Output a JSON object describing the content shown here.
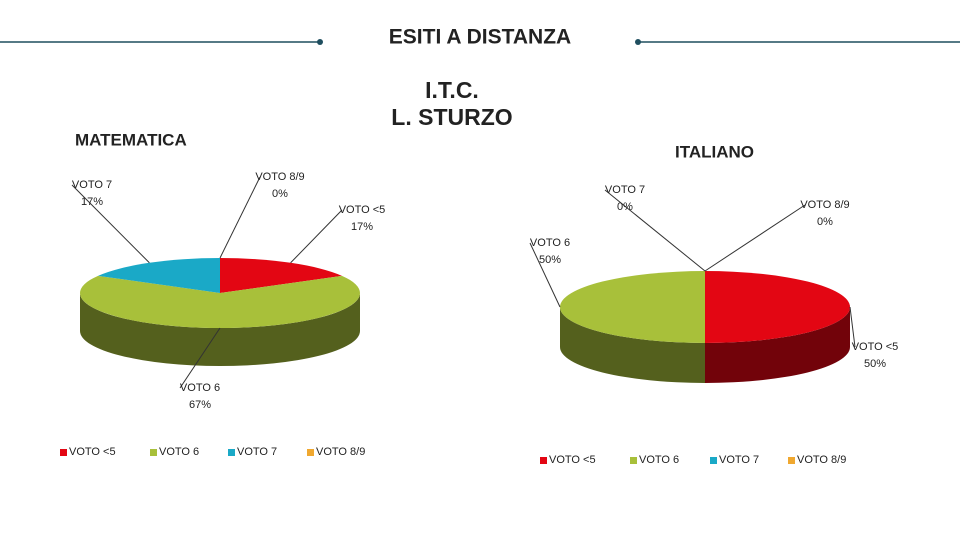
{
  "header": {
    "title": "ESITI A DISTANZA",
    "subtitle": [
      "I.T.C.",
      "L. STURZO"
    ]
  },
  "chart_data": [
    {
      "type": "pie",
      "title": "MATEMATICA",
      "categories": [
        "VOTO <5",
        "VOTO 6",
        "VOTO 7",
        "VOTO 8/9"
      ],
      "values": [
        17,
        67,
        17,
        0
      ],
      "value_labels": [
        "17%",
        "67%",
        "17%",
        "0%"
      ],
      "colors": [
        "#e30613",
        "#a8c03a",
        "#1aa9c7",
        "#f0a830"
      ]
    },
    {
      "type": "pie",
      "title": "ITALIANO",
      "categories": [
        "VOTO <5",
        "VOTO 6",
        "VOTO 7",
        "VOTO 8/9"
      ],
      "values": [
        50,
        50,
        0,
        0
      ],
      "value_labels": [
        "50%",
        "50%",
        "0%",
        "0%"
      ],
      "colors": [
        "#e30613",
        "#a8c03a",
        "#1aa9c7",
        "#f0a830"
      ]
    }
  ]
}
